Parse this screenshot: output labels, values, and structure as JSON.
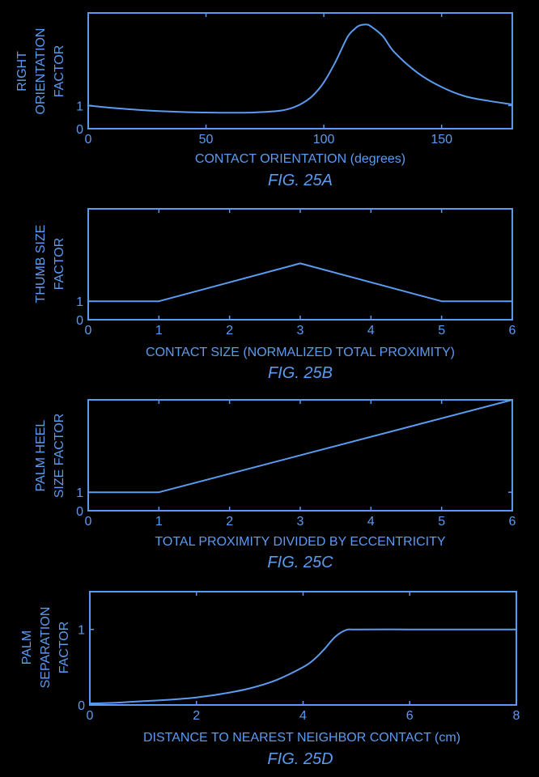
{
  "chart_data": [
    {
      "type": "line",
      "figure_label": "FIG. 25A",
      "xlabel": "CONTACT ORIENTATION (degrees)",
      "ylabel": [
        "RIGHT",
        "ORIENTATION",
        "FACTOR"
      ],
      "xlim": [
        0,
        180
      ],
      "ylim": [
        0,
        5
      ],
      "xticks": [
        0,
        50,
        100,
        150
      ],
      "yticks": [
        0,
        1
      ],
      "series": [
        {
          "x": [
            0,
            10,
            20,
            30,
            40,
            50,
            60,
            70,
            80,
            85,
            90,
            95,
            100,
            105,
            110,
            113,
            115,
            118,
            120,
            125,
            130,
            140,
            150,
            160,
            170,
            180
          ],
          "y": [
            1.0,
            0.9,
            0.82,
            0.76,
            0.72,
            0.7,
            0.69,
            0.7,
            0.76,
            0.85,
            1.05,
            1.4,
            2.0,
            2.9,
            3.95,
            4.3,
            4.45,
            4.5,
            4.42,
            4.0,
            3.3,
            2.4,
            1.8,
            1.4,
            1.2,
            1.05
          ]
        }
      ]
    },
    {
      "type": "line",
      "figure_label": "FIG. 25B",
      "xlabel": "CONTACT SIZE (NORMALIZED TOTAL PROXIMITY)",
      "ylabel": [
        "THUMB SIZE",
        "FACTOR"
      ],
      "xlim": [
        0,
        6
      ],
      "ylim": [
        0,
        6
      ],
      "xticks": [
        0,
        1,
        2,
        3,
        4,
        5,
        6
      ],
      "yticks": [
        0,
        1
      ],
      "series": [
        {
          "x": [
            0,
            1,
            3,
            5,
            6
          ],
          "y": [
            1,
            1,
            3.05,
            1,
            1
          ]
        }
      ]
    },
    {
      "type": "line",
      "figure_label": "FIG. 25C",
      "xlabel": "TOTAL PROXIMITY DIVIDED BY ECCENTRICITY",
      "ylabel": [
        "PALM HEEL",
        "SIZE FACTOR"
      ],
      "xlim": [
        0,
        6
      ],
      "ylim": [
        0,
        6
      ],
      "xticks": [
        0,
        1,
        2,
        3,
        4,
        5,
        6
      ],
      "yticks": [
        0,
        1
      ],
      "series": [
        {
          "x": [
            0,
            1,
            6
          ],
          "y": [
            1,
            1,
            6
          ]
        }
      ]
    },
    {
      "type": "line",
      "figure_label": "FIG. 25D",
      "xlabel": "DISTANCE TO NEAREST NEIGHBOR CONTACT (cm)",
      "ylabel": [
        "PALM",
        "SEPARATION",
        "FACTOR"
      ],
      "xlim": [
        0,
        8
      ],
      "ylim": [
        0,
        1.5
      ],
      "xticks": [
        0,
        2,
        4,
        6,
        8
      ],
      "yticks": [
        0,
        1
      ],
      "series": [
        {
          "x": [
            0,
            0.5,
            1,
            1.5,
            2,
            2.5,
            3,
            3.5,
            4,
            4.2,
            4.4,
            4.6,
            4.8,
            5,
            6,
            7,
            8
          ],
          "y": [
            0.02,
            0.03,
            0.05,
            0.07,
            0.1,
            0.15,
            0.22,
            0.33,
            0.5,
            0.6,
            0.74,
            0.9,
            0.99,
            1.0,
            1.0,
            1.0,
            1.0
          ]
        }
      ]
    }
  ]
}
